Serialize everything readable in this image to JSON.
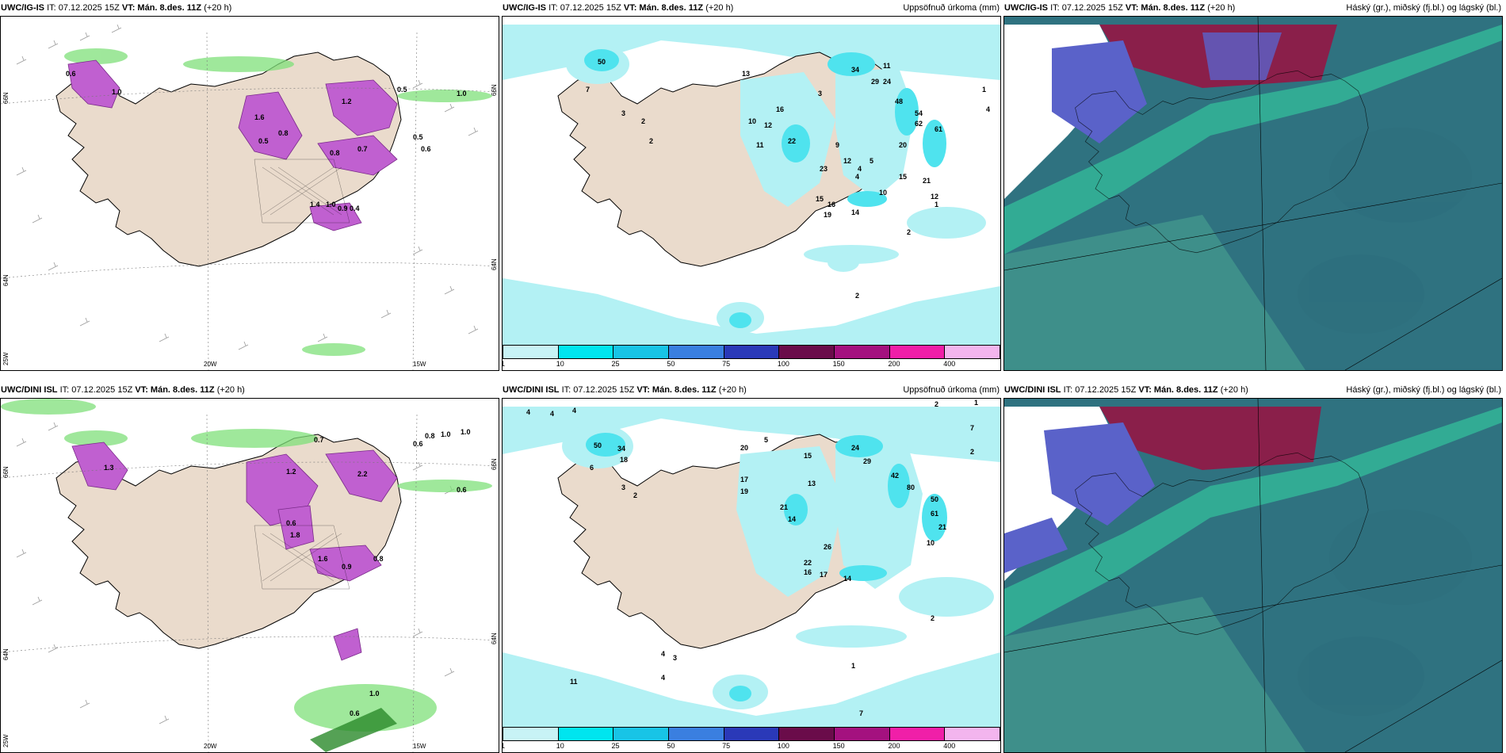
{
  "colors": {
    "land": "#eadbcc",
    "ocean_white": "#ffffff",
    "precip_light": "#b3f1f4",
    "precip_cyan": "#4fe3ee",
    "snow_magenta": "#c060d0",
    "rain_green": "#7fe07a",
    "cloud_teal": "#3e8f8a",
    "cloud_dark": "#2d6f7e",
    "cloud_maroon": "#8a1f4a"
  },
  "panels": {
    "r1c1": {
      "model": "UWC/IG-IS",
      "init_prefix": "IT: 07.12.2025 15Z ",
      "valid": "VT: Mán. 8.des. 11Z",
      "lead": "(+20 h)",
      "right_title": "",
      "labels": [
        "0.6",
        "1.0",
        "1.6",
        "0.8",
        "1.2",
        "0.5",
        "0.5",
        "1.0",
        "0.8",
        "0.7",
        "1.4",
        "1.0",
        "0.9",
        "0.4",
        "0.5",
        "0.6"
      ]
    },
    "r1c2": {
      "model": "UWC/IG-IS",
      "init_prefix": "IT: 07.12.2025 15Z ",
      "valid": "VT: Mán. 8.des. 11Z",
      "lead": "(+20 h)",
      "right_title": "Uppsöfnuð úrkoma (mm)",
      "labels": [
        "50",
        "7",
        "3",
        "2",
        "2",
        "13",
        "10",
        "12",
        "11",
        "16",
        "22",
        "23",
        "34",
        "29",
        "24",
        "48",
        "54",
        "62",
        "61",
        "20",
        "9",
        "12",
        "15",
        "16",
        "19",
        "14",
        "10",
        "15",
        "21",
        "12",
        "11",
        "4",
        "1",
        "2",
        "2",
        "4",
        "1",
        "3",
        "4",
        "5"
      ]
    },
    "r1c3": {
      "model": "UWC/IG-IS",
      "init_prefix": "IT: 07.12.2025 15Z ",
      "valid": "VT: Mán. 8.des. 11Z",
      "lead": "(+20 h)",
      "right_title": "Háský (gr.), miðský (fj.bl.) og lágský (bl.)",
      "labels": []
    },
    "r2c1": {
      "model": "UWC/DINI ISL",
      "init_prefix": "IT: 07.12.2025 15Z ",
      "valid": "VT: Mán. 8.des. 11Z",
      "lead": "(+20 h)",
      "right_title": "",
      "labels": [
        "0.6",
        "1.0",
        "0.8",
        "1.0",
        "1.2",
        "2.2",
        "1.3",
        "0.6",
        "1.8",
        "0.9",
        "0.6",
        "1.0",
        "0.6",
        "1.6",
        "0.8",
        "0.7"
      ]
    },
    "r2c2": {
      "model": "UWC/DINI ISL",
      "init_prefix": "IT: 07.12.2025 15Z ",
      "valid": "VT: Mán. 8.des. 11Z",
      "lead": "(+20 h)",
      "right_title": "Uppsöfnuð úrkoma (mm)",
      "labels": [
        "4",
        "4",
        "4",
        "50",
        "34",
        "18",
        "6",
        "3",
        "2",
        "20",
        "5",
        "15",
        "24",
        "29",
        "42",
        "17",
        "19",
        "21",
        "14",
        "13",
        "80",
        "50",
        "61",
        "21",
        "26",
        "22",
        "16",
        "17",
        "14",
        "10",
        "2",
        "1",
        "7",
        "2",
        "4",
        "3",
        "11",
        "4",
        "1",
        "7",
        "2"
      ]
    },
    "r2c3": {
      "model": "UWC/DINI ISL",
      "init_prefix": "IT: 07.12.2025 15Z ",
      "valid": "VT: Mán. 8.des. 11Z",
      "lead": "(+20 h)",
      "right_title": "Háský (gr.), miðský (fj.bl.) og lágský (bl.)",
      "labels": []
    }
  },
  "axes": {
    "lon_left": "20W",
    "lon_right": "15W",
    "lat_top": "66N",
    "lat_mid": "64N",
    "lat_bottom": "25W",
    "right_top": "66N",
    "right_mid": "64N"
  },
  "colorbar": {
    "ticks": [
      "1",
      "10",
      "25",
      "50",
      "75",
      "100",
      "150",
      "200",
      "400"
    ],
    "colors": [
      "#c8f3f6",
      "#00e5ef",
      "#18c4e6",
      "#3a7fe0",
      "#2a39b8",
      "#6a0c4a",
      "#a4117f",
      "#f01fa8",
      "#f3b5ee"
    ]
  }
}
